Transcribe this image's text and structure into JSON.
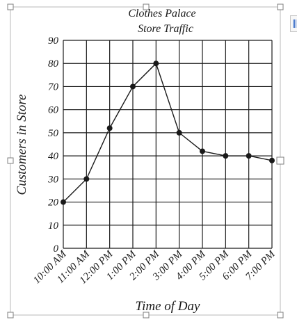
{
  "chart_data": {
    "type": "line",
    "title": "Clothes Palace",
    "subtitle": "Store Traffic",
    "xlabel": "Time of Day",
    "ylabel": "Customers in Store",
    "categories": [
      "10:00 AM",
      "11:00 AM",
      "12:00 PM",
      "1:00 PM",
      "2:00 PM",
      "3:00 PM",
      "4:00 PM",
      "5:00 PM",
      "6:00 PM",
      "7:00 PM"
    ],
    "y_ticks": [
      "0",
      "10",
      "20",
      "30",
      "40",
      "50",
      "60",
      "70",
      "80",
      "90"
    ],
    "series": [
      {
        "values": [
          20,
          30,
          52,
          70,
          80,
          50,
          42,
          40,
          40,
          38
        ]
      }
    ],
    "ylim": [
      0,
      90
    ],
    "grid": true,
    "legend": "none",
    "colors": {
      "ink": "#1a1a1a",
      "selection_frame": "#b9b9b9"
    }
  },
  "ui": {
    "selection_handles": true,
    "side_widget_icon": "layout-options-icon"
  }
}
